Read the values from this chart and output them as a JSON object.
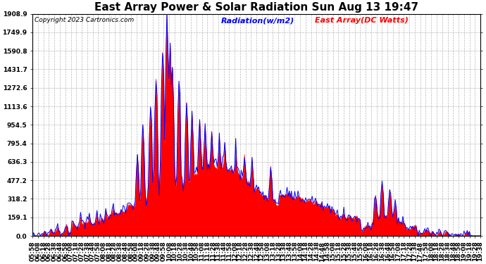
{
  "title": "East Array Power & Solar Radiation Sun Aug 13 19:47",
  "copyright": "Copyright 2023 Cartronics.com",
  "legend_radiation": "Radiation(w/m2)",
  "legend_east": "East Array(DC Watts)",
  "radiation_color": "#0000ff",
  "east_color": "#ff0000",
  "east_fill_color": "#ff0000",
  "background_color": "#ffffff",
  "grid_color": "#888888",
  "ymax": 1908.9,
  "ymin": 0.0,
  "yticks": [
    0.0,
    159.1,
    318.2,
    477.2,
    636.3,
    795.4,
    954.5,
    1113.6,
    1272.6,
    1431.7,
    1590.8,
    1749.9,
    1908.9
  ],
  "title_fontsize": 11,
  "copyright_fontsize": 6.5,
  "legend_fontsize": 8,
  "tick_fontsize": 6.5
}
